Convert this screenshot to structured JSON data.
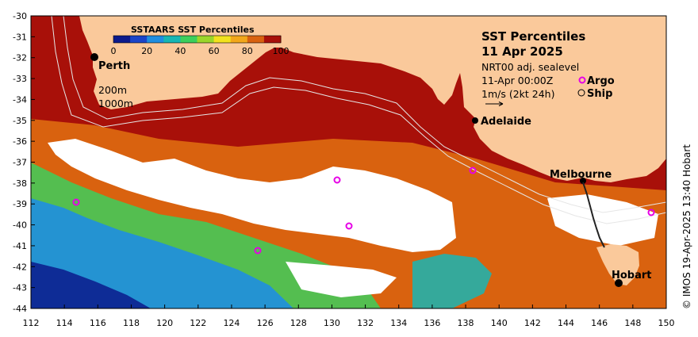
{
  "colorbar": {
    "title": "SSTAARS SST Percentiles",
    "ticks": [
      "0",
      "20",
      "40",
      "60",
      "80",
      "100"
    ],
    "colors": [
      "#0b1a8c",
      "#1b44c8",
      "#1f8ee0",
      "#17b6b4",
      "#3ccf5c",
      "#9bd62a",
      "#f2e21d",
      "#f2a71a",
      "#d9620f",
      "#a81009"
    ]
  },
  "title": {
    "line1": "SST Percentiles",
    "line2": "11 Apr 2025",
    "line3": "NRT00 adj. sealevel",
    "line4": "11-Apr 00:00Z",
    "line5": "1m/s (2kt 24h)"
  },
  "legend": {
    "argo": "Argo",
    "ship": "Ship"
  },
  "contours": {
    "c200": "200m",
    "c1000": "1000m"
  },
  "cities": {
    "perth": "Perth",
    "adelaide": "Adelaide",
    "melbourne": "Melbourne",
    "hobart": "Hobart"
  },
  "credit": "© IMOS 19-Apr-2025 13:40 Hobart",
  "axes": {
    "x_ticks": [
      "112",
      "114",
      "116",
      "118",
      "120",
      "122",
      "124",
      "126",
      "128",
      "130",
      "132",
      "134",
      "136",
      "138",
      "140",
      "142",
      "144",
      "146",
      "148",
      "150"
    ],
    "y_ticks": [
      "-30",
      "-31",
      "-32",
      "-33",
      "-34",
      "-35",
      "-36",
      "-37",
      "-38",
      "-39",
      "-40",
      "-41",
      "-42",
      "-43",
      "-44"
    ]
  },
  "colors": {
    "land": "#fac99b",
    "sea_warm": "#a81009",
    "no_data": "#ffffff"
  }
}
